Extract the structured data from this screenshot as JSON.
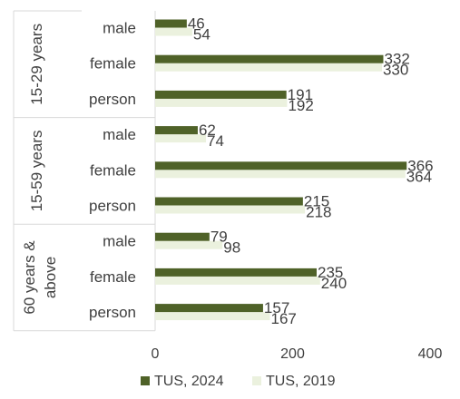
{
  "chart_data": {
    "type": "bar",
    "orientation": "horizontal",
    "groups": [
      {
        "label": "15-29 years",
        "categories": [
          "male",
          "female",
          "person"
        ]
      },
      {
        "label": "15-59 years",
        "categories": [
          "male",
          "female",
          "person"
        ]
      },
      {
        "label": "60 years & above",
        "label_lines": [
          "60 years &",
          "above"
        ],
        "categories": [
          "male",
          "female",
          "person"
        ]
      }
    ],
    "series": [
      {
        "name": "TUS, 2024",
        "color": "#4f6228",
        "values": [
          46,
          332,
          191,
          62,
          366,
          215,
          79,
          235,
          157
        ]
      },
      {
        "name": "TUS, 2019",
        "color": "#ebf1de",
        "values": [
          54,
          330,
          192,
          74,
          364,
          218,
          98,
          240,
          167
        ]
      }
    ],
    "xlim": [
      0,
      400
    ],
    "xticks": [
      0,
      200,
      400
    ],
    "grid": false,
    "legend_position": "bottom"
  }
}
